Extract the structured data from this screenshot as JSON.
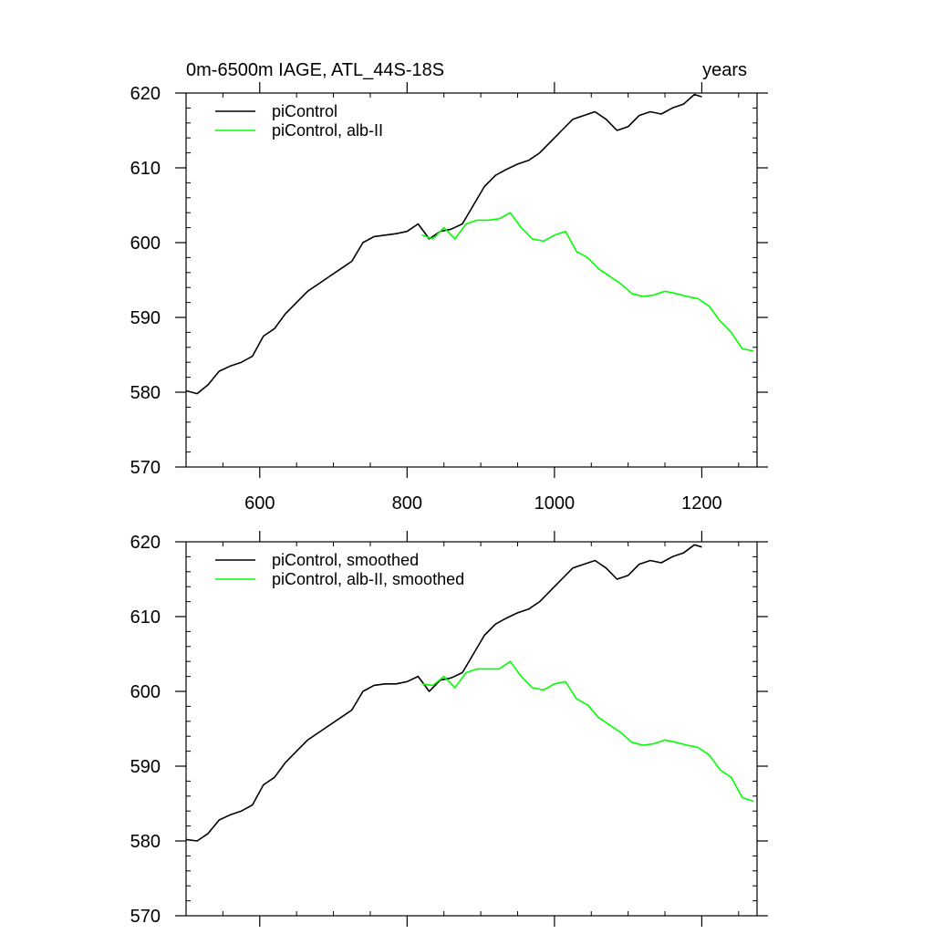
{
  "header": {
    "title_left": "0m-6500m IAGE, ATL_44S-18S",
    "title_right": "years"
  },
  "colors": {
    "control": "#000000",
    "experiment": "#00ff00"
  },
  "chart_data": [
    {
      "type": "line",
      "xlim": [
        500,
        1275
      ],
      "ylim": [
        570,
        620
      ],
      "xticks": [
        600,
        800,
        1000,
        1200
      ],
      "xtick_labels": [
        "600",
        "800",
        "1000",
        "1200"
      ],
      "yticks": [
        570,
        580,
        590,
        600,
        610,
        620
      ],
      "ytick_labels": [
        "570",
        "580",
        "590",
        "600",
        "610",
        "620"
      ],
      "legend_position": "top-left",
      "series": [
        {
          "name": "piControl",
          "color": "#000000",
          "x": [
            500,
            515,
            530,
            545,
            560,
            575,
            590,
            605,
            620,
            635,
            650,
            665,
            680,
            695,
            710,
            725,
            740,
            755,
            770,
            785,
            800,
            815,
            830,
            845,
            860,
            875,
            890,
            905,
            920,
            935,
            950,
            965,
            980,
            995,
            1010,
            1025,
            1040,
            1055,
            1070,
            1085,
            1100,
            1115,
            1130,
            1145,
            1160,
            1175,
            1190,
            1200
          ],
          "y": [
            580.2,
            579.8,
            581.0,
            582.8,
            583.5,
            584.0,
            584.8,
            587.5,
            588.5,
            590.5,
            592.0,
            593.5,
            594.5,
            595.5,
            596.5,
            597.5,
            600.0,
            600.8,
            601.0,
            601.2,
            601.5,
            602.5,
            600.5,
            601.5,
            601.8,
            602.5,
            605.0,
            607.5,
            609.0,
            609.8,
            610.5,
            611.0,
            612.0,
            613.5,
            615.0,
            616.5,
            617.0,
            617.5,
            616.5,
            615.0,
            615.5,
            617.0,
            617.5,
            617.2,
            618.0,
            618.5,
            619.8,
            619.5
          ]
        },
        {
          "name": "piControl, alb-II",
          "color": "#00ff00",
          "x": [
            820,
            835,
            850,
            865,
            880,
            895,
            910,
            925,
            940,
            955,
            970,
            985,
            1000,
            1015,
            1030,
            1045,
            1060,
            1075,
            1090,
            1105,
            1120,
            1135,
            1150,
            1165,
            1180,
            1195,
            1210,
            1225,
            1240,
            1255,
            1270
          ],
          "y": [
            601.0,
            600.5,
            602.0,
            600.5,
            602.5,
            603.0,
            603.0,
            603.2,
            604.0,
            602.0,
            600.5,
            600.2,
            601.0,
            601.5,
            598.8,
            598.0,
            596.5,
            595.5,
            594.5,
            593.2,
            592.8,
            593.0,
            593.5,
            593.2,
            592.8,
            592.5,
            591.5,
            589.5,
            588.0,
            585.8,
            585.5
          ]
        }
      ]
    },
    {
      "type": "line",
      "xlim": [
        500,
        1275
      ],
      "ylim": [
        570,
        620
      ],
      "xticks": [
        600,
        800,
        1000,
        1200
      ],
      "xtick_labels": [],
      "yticks": [
        570,
        580,
        590,
        600,
        610,
        620
      ],
      "ytick_labels": [
        "570",
        "580",
        "590",
        "600",
        "610",
        "620"
      ],
      "legend_position": "top-left",
      "series": [
        {
          "name": "piControl, smoothed",
          "color": "#000000",
          "x": [
            500,
            515,
            530,
            545,
            560,
            575,
            590,
            605,
            620,
            635,
            650,
            665,
            680,
            695,
            710,
            725,
            740,
            755,
            770,
            785,
            800,
            815,
            830,
            845,
            860,
            875,
            890,
            905,
            920,
            935,
            950,
            965,
            980,
            995,
            1010,
            1025,
            1040,
            1055,
            1070,
            1085,
            1100,
            1115,
            1130,
            1145,
            1160,
            1175,
            1190,
            1200
          ],
          "y": [
            580.2,
            580.0,
            581.0,
            582.8,
            583.5,
            584.0,
            584.8,
            587.5,
            588.5,
            590.5,
            592.0,
            593.5,
            594.5,
            595.5,
            596.5,
            597.5,
            600.0,
            600.8,
            601.0,
            601.0,
            601.3,
            602.0,
            600.0,
            601.5,
            601.8,
            602.5,
            605.0,
            607.5,
            609.0,
            609.8,
            610.5,
            611.0,
            612.0,
            613.5,
            615.0,
            616.5,
            617.0,
            617.5,
            616.5,
            615.0,
            615.5,
            617.0,
            617.5,
            617.2,
            618.0,
            618.5,
            619.6,
            619.3
          ]
        },
        {
          "name": "piControl, alb-II, smoothed",
          "color": "#00ff00",
          "x": [
            820,
            835,
            850,
            865,
            880,
            895,
            910,
            925,
            940,
            955,
            970,
            985,
            1000,
            1015,
            1030,
            1045,
            1060,
            1075,
            1090,
            1105,
            1120,
            1135,
            1150,
            1165,
            1180,
            1195,
            1210,
            1225,
            1240,
            1255,
            1270
          ],
          "y": [
            601.0,
            600.8,
            602.0,
            600.5,
            602.5,
            603.0,
            603.0,
            603.0,
            604.0,
            602.0,
            600.5,
            600.2,
            601.0,
            601.3,
            599.0,
            598.2,
            596.5,
            595.5,
            594.5,
            593.2,
            592.8,
            593.0,
            593.5,
            593.2,
            592.8,
            592.5,
            591.5,
            589.5,
            588.5,
            585.8,
            585.3
          ]
        }
      ]
    }
  ]
}
